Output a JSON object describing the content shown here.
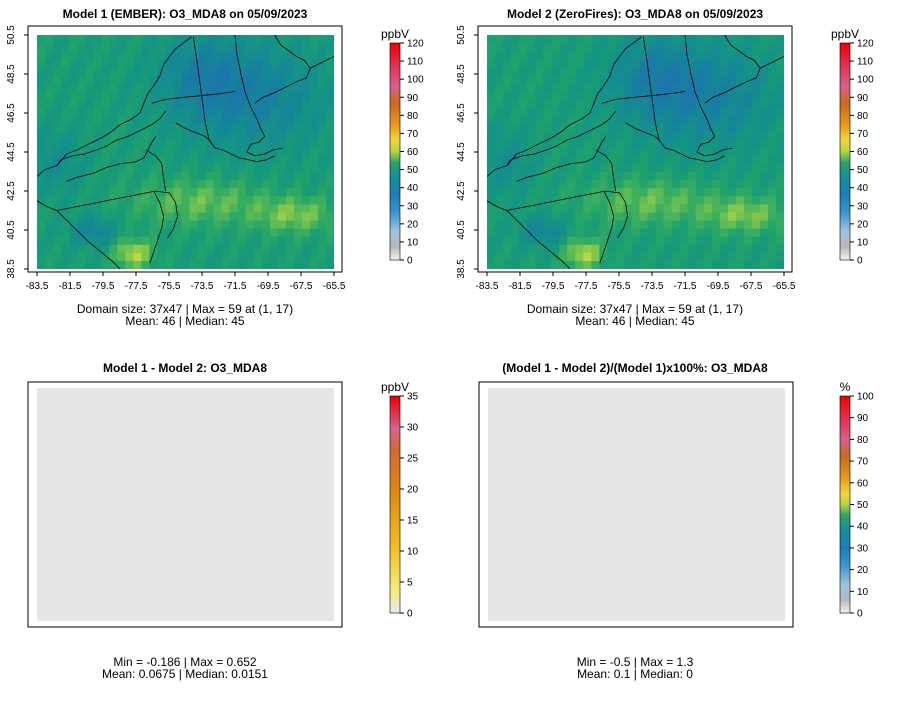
{
  "chart_data": [
    {
      "type": "heatmap",
      "panel": "top-left",
      "title": "Model 1 (EMBER): O3_MDA8 on 05/09/2023",
      "x_ticks": [
        "-83.5",
        "-81.5",
        "-79.5",
        "-77.5",
        "-75.5",
        "-73.5",
        "-71.5",
        "-69.5",
        "-67.5",
        "-65.5"
      ],
      "y_ticks": [
        "50.5",
        "48.5",
        "46.5",
        "44.5",
        "42.5",
        "40.5",
        "38.5"
      ],
      "xlim": [
        -83.5,
        -65.5
      ],
      "ylim": [
        38.5,
        50.5
      ],
      "colorbar": {
        "unit": "ppbV",
        "ticks": [
          "0",
          "10",
          "20",
          "30",
          "40",
          "50",
          "60",
          "70",
          "80",
          "90",
          "100",
          "110",
          "120"
        ],
        "range": [
          0,
          120
        ]
      },
      "caption_line1": "Domain size: 37x47 | Max = 59 at (1, 17)",
      "caption_line2": "Mean: 46 |  Median: 45",
      "stats": {
        "max": 59,
        "mean": 46,
        "median": 45
      }
    },
    {
      "type": "heatmap",
      "panel": "top-right",
      "title": "Model 2 (ZeroFires): O3_MDA8 on 05/09/2023",
      "x_ticks": [
        "-83.5",
        "-81.5",
        "-79.5",
        "-77.5",
        "-75.5",
        "-73.5",
        "-71.5",
        "-69.5",
        "-67.5",
        "-65.5"
      ],
      "y_ticks": [
        "50.5",
        "48.5",
        "46.5",
        "44.5",
        "42.5",
        "40.5",
        "38.5"
      ],
      "xlim": [
        -83.5,
        -65.5
      ],
      "ylim": [
        38.5,
        50.5
      ],
      "colorbar": {
        "unit": "ppbV",
        "ticks": [
          "0",
          "10",
          "20",
          "30",
          "40",
          "50",
          "60",
          "70",
          "80",
          "90",
          "100",
          "110",
          "120"
        ],
        "range": [
          0,
          120
        ]
      },
      "caption_line1": "Domain size: 37x47 | Max = 59 at (1, 17)",
      "caption_line2": "Mean: 46 |  Median: 45",
      "stats": {
        "max": 59,
        "mean": 46,
        "median": 45
      }
    },
    {
      "type": "heatmap",
      "panel": "bottom-left",
      "title": "Model 1 - Model 2: O3_MDA8",
      "colorbar": {
        "unit": "ppbV",
        "ticks": [
          "0",
          "5",
          "10",
          "15",
          "20",
          "25",
          "30",
          "35"
        ],
        "range": [
          0,
          35
        ]
      },
      "caption_line1": "Min = -0.186 | Max = 0.652",
      "caption_line2": "Mean: 0.0675 |  Median: 0.0151",
      "stats": {
        "min": -0.186,
        "max": 0.652,
        "mean": 0.0675,
        "median": 0.0151
      }
    },
    {
      "type": "heatmap",
      "panel": "bottom-right",
      "title": "(Model 1 - Model 2)/(Model 1)x100%: O3_MDA8",
      "colorbar": {
        "unit": "%",
        "ticks": [
          "0",
          "10",
          "20",
          "30",
          "40",
          "50",
          "60",
          "70",
          "80",
          "90",
          "100"
        ],
        "range": [
          0,
          100
        ]
      },
      "caption_line1": "Min = -0.5 | Max = 1.3",
      "caption_line2": "Mean: 0.1 |  Median: 0",
      "stats": {
        "min": -0.5,
        "max": 1.3,
        "mean": 0.1,
        "median": 0
      }
    }
  ]
}
